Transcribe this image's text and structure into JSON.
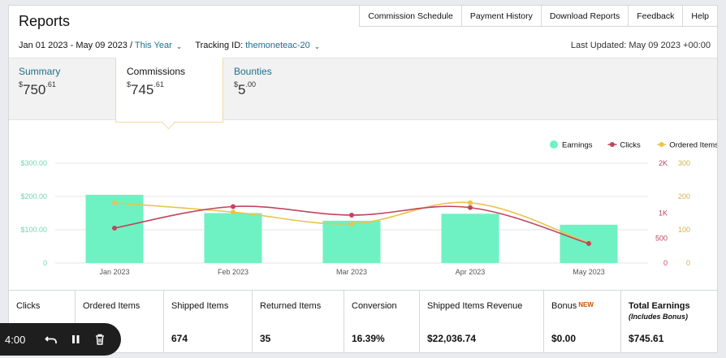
{
  "header": {
    "title": "Reports",
    "nav": [
      "Commission Schedule",
      "Payment History",
      "Download Reports",
      "Feedback",
      "Help"
    ]
  },
  "filters": {
    "date_range": "Jan 01 2023 - May 09 2023 / ",
    "date_preset": "This Year",
    "tracking_label": "Tracking ID: ",
    "tracking_id": "themoneteac-20",
    "last_updated": "Last Updated: May 09 2023 +00:00"
  },
  "tabs": {
    "summary": {
      "label": "Summary",
      "currency": "$",
      "whole": "750",
      "cents": ".61"
    },
    "commissions": {
      "label": "Commissions",
      "currency": "$",
      "whole": "745",
      "cents": ".61"
    },
    "bounties": {
      "label": "Bounties",
      "currency": "$",
      "whole": "5",
      "cents": ".00"
    }
  },
  "chart_data": {
    "type": "bar",
    "categories": [
      "Jan 2023",
      "Feb 2023",
      "Mar 2023",
      "Apr 2023",
      "May 2023"
    ],
    "series": [
      {
        "name": "Earnings",
        "type": "bar",
        "axis": "left",
        "values": [
          205,
          150,
          127,
          148,
          115
        ]
      },
      {
        "name": "Clicks",
        "type": "line",
        "axis": "right1",
        "values": [
          700,
          1130,
          960,
          1110,
          390
        ]
      },
      {
        "name": "Ordered Items",
        "type": "line",
        "axis": "right2",
        "values": [
          181,
          153,
          118,
          181,
          60
        ]
      }
    ],
    "axes": {
      "left": {
        "min": 0,
        "max": 300,
        "ticks": [
          "0",
          "$100.00",
          "$200.00",
          "$300.00"
        ]
      },
      "right1": {
        "min": 0,
        "max": 2000,
        "ticks": [
          "0",
          "500",
          "1K",
          "2K"
        ]
      },
      "right2": {
        "min": 0,
        "max": 300,
        "ticks": [
          "0",
          "100",
          "200",
          "300"
        ]
      }
    },
    "legend_position": "top-right",
    "grid": true,
    "colors": {
      "Earnings": "#6ef2c3",
      "Clicks": "#c0455e",
      "Ordered Items": "#ecc24a",
      "left_axis": "#6fd6b0",
      "right1_axis": "#c0455e",
      "right2_axis": "#d9b04a"
    }
  },
  "table": {
    "columns": [
      {
        "header": "Clicks",
        "value": ""
      },
      {
        "header": "Ordered Items",
        "value": ""
      },
      {
        "header": "Shipped Items",
        "value": "674"
      },
      {
        "header": "Returned Items",
        "value": "35"
      },
      {
        "header": "Conversion",
        "value": "16.39%"
      },
      {
        "header": "Shipped Items Revenue",
        "value": "$22,036.74"
      },
      {
        "header": "Bonus",
        "badge": "NEW",
        "value": "$0.00"
      },
      {
        "header": "Total Earnings",
        "subheader": "(Includes Bonus)",
        "value": "$745.61"
      }
    ]
  },
  "player": {
    "time": "4:00",
    "icons": [
      "undo-icon",
      "pause-icon",
      "trash-icon"
    ]
  }
}
